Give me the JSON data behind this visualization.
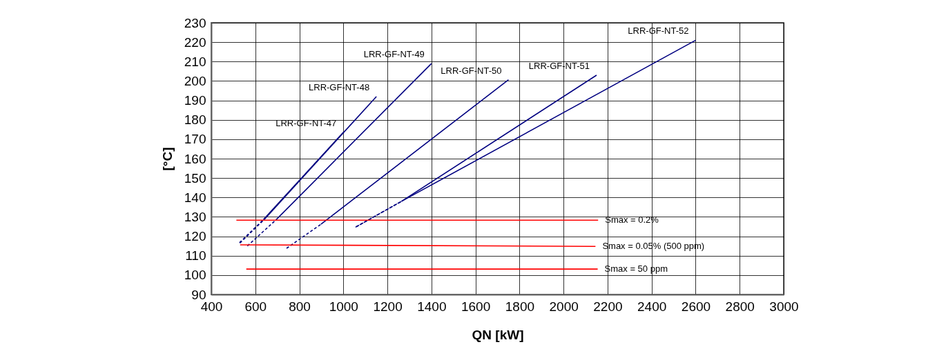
{
  "chart_data": {
    "type": "line",
    "xlabel": "QN [kW]",
    "ylabel": "[°C]",
    "xlim": [
      400,
      3000
    ],
    "ylim": [
      90,
      230
    ],
    "xticks": [
      400,
      600,
      800,
      1000,
      1200,
      1400,
      1600,
      1800,
      2000,
      2200,
      2400,
      2600,
      2800,
      3000
    ],
    "yticks": [
      90,
      100,
      110,
      120,
      130,
      140,
      150,
      160,
      170,
      180,
      190,
      200,
      210,
      220,
      230
    ],
    "grid": true,
    "series": [
      {
        "color": "#000080",
        "line_style": "dashed",
        "x": [
          528,
          637
        ],
        "values": [
          116.7,
          128.6
        ]
      },
      {
        "name": "LRR-GF-NT-47",
        "color": "#000080",
        "line_style": "solid",
        "x": [
          637,
          1000
        ],
        "values": [
          128.6,
          173.6
        ]
      },
      {
        "color": "#000080",
        "line_style": "dashed",
        "x": [
          530,
          640
        ],
        "values": [
          116.5,
          128.6
        ]
      },
      {
        "name": "LRR-GF-NT-48",
        "color": "#000080",
        "line_style": "solid",
        "x": [
          640,
          1150
        ],
        "values": [
          128.6,
          192
        ]
      },
      {
        "color": "#000080",
        "line_style": "dashed",
        "x": [
          564,
          695
        ],
        "values": [
          115,
          128.6
        ]
      },
      {
        "name": "LRR-GF-NT-49",
        "color": "#000080",
        "line_style": "solid",
        "x": [
          695,
          1400
        ],
        "values": [
          128.6,
          209
        ]
      },
      {
        "color": "#000080",
        "line_style": "dashed",
        "x": [
          742,
          898
        ],
        "values": [
          113.8,
          126.2
        ]
      },
      {
        "name": "LRR-GF-NT-50",
        "color": "#000080",
        "line_style": "solid",
        "x": [
          898,
          1750
        ],
        "values": [
          126.2,
          200.6
        ]
      },
      {
        "color": "#000080",
        "line_style": "dashed",
        "x": [
          1055,
          1264
        ],
        "values": [
          124.7,
          138
        ]
      },
      {
        "name": "LRR-GF-NT-51",
        "color": "#000080",
        "line_style": "solid",
        "x": [
          1264,
          2150
        ],
        "values": [
          138,
          203
        ]
      },
      {
        "color": "#000080",
        "line_style": "dashed",
        "x": [
          1060,
          1264
        ],
        "values": [
          125,
          138
        ]
      },
      {
        "name": "LRR-GF-NT-52",
        "color": "#000080",
        "line_style": "solid",
        "x": [
          1264,
          2600
        ],
        "values": [
          138,
          221
        ]
      },
      {
        "name": "Smax = 0.2%",
        "color": "#ff0000",
        "line_style": "solid",
        "x": [
          514,
          2157
        ],
        "values": [
          128.3,
          128.3
        ]
      },
      {
        "name": "Smax = 0.05% (500 ppm)",
        "color": "#ff0000",
        "line_style": "solid",
        "x": [
          531,
          2145
        ],
        "values": [
          115.6,
          114.8
        ]
      },
      {
        "name": "Smax = 50 ppm",
        "color": "#ff0000",
        "line_style": "solid",
        "x": [
          559,
          2155
        ],
        "values": [
          103.1,
          103.1
        ]
      }
    ]
  }
}
